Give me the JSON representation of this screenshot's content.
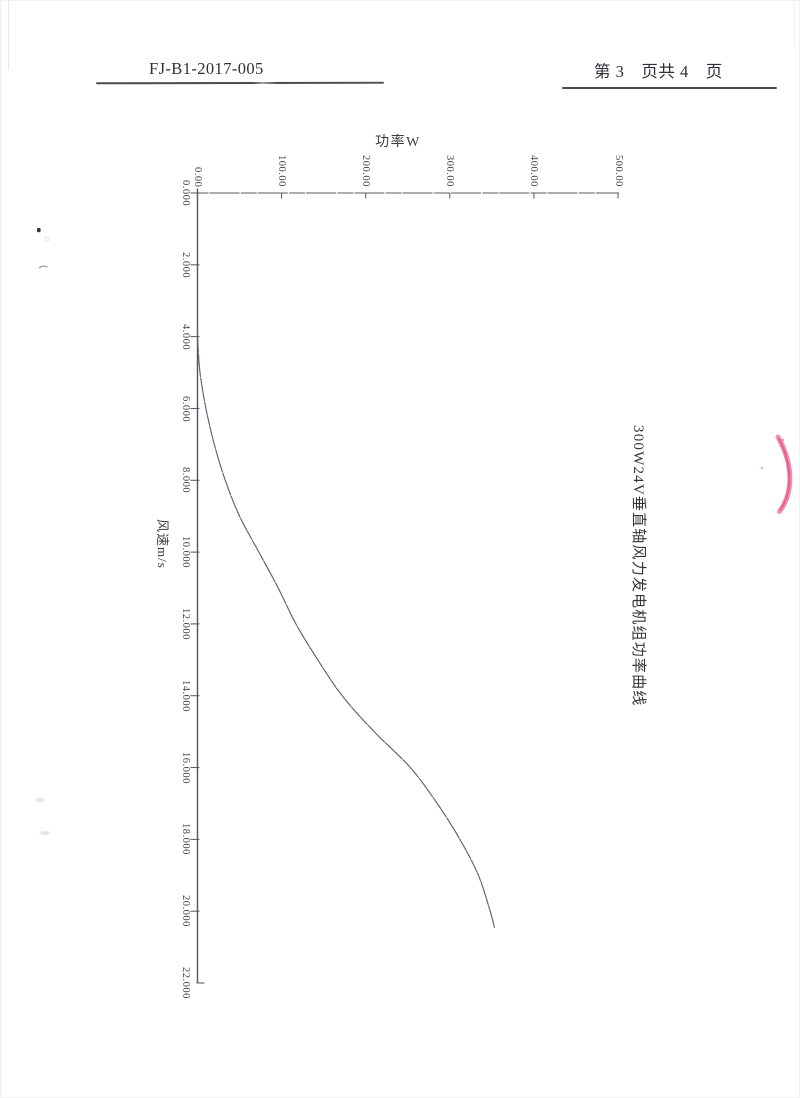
{
  "page": {
    "background": "#ffffff",
    "header": {
      "doc_number": "FJ-B1-2017-005",
      "page_info": "第 3　页共 4　页"
    }
  },
  "chart_data": {
    "type": "line",
    "title": "300W24V垂直轴风力发电机组功率曲线",
    "xlabel": "风速m/s",
    "ylabel": "功率W",
    "xlim": [
      0,
      22
    ],
    "ylim": [
      0,
      500
    ],
    "x_ticks": [
      "0.000",
      "2.000",
      "4.000",
      "6.000",
      "8.000",
      "10.000",
      "12.000",
      "14.000",
      "16.000",
      "18.000",
      "20.000",
      "22.000"
    ],
    "y_ticks": [
      "0.00",
      "100.00",
      "200.00",
      "300.00",
      "400.00",
      "500.00"
    ],
    "grid": false,
    "legend": "none",
    "layout": "landscape chart rotated 90deg clockwise on portrait scanned page; wind-speed axis runs vertically downward, power axis runs horizontally at top",
    "series": [
      {
        "name": "功率曲线",
        "points": [
          [
            3.8,
            0
          ],
          [
            4.2,
            0.5
          ],
          [
            5,
            3
          ],
          [
            6,
            10
          ],
          [
            7,
            20
          ],
          [
            8,
            33
          ],
          [
            9,
            50
          ],
          [
            10,
            73
          ],
          [
            11,
            96
          ],
          [
            12,
            117
          ],
          [
            13,
            143
          ],
          [
            14,
            172
          ],
          [
            15,
            210
          ],
          [
            16,
            253
          ],
          [
            17,
            285
          ],
          [
            18,
            312
          ],
          [
            19,
            334
          ],
          [
            20,
            348
          ],
          [
            20.45,
            353
          ]
        ]
      }
    ]
  },
  "colors": {
    "ink": "#3a3a44",
    "axis_line": "#53535d",
    "curve_line": "#60606a",
    "pink_mark": "#e8639a"
  }
}
